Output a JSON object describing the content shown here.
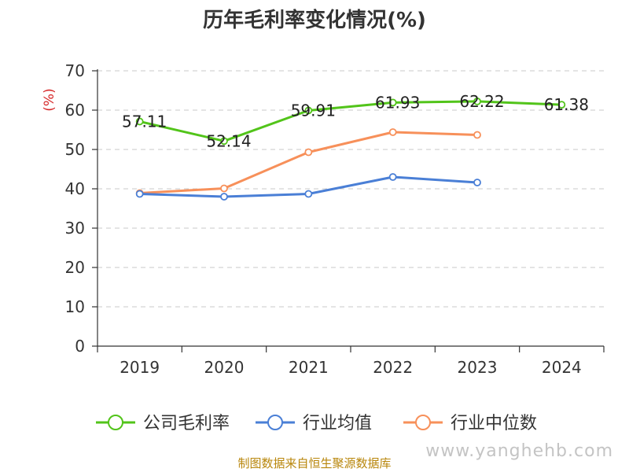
{
  "chart_data": {
    "type": "line",
    "title": "历年毛利率变化情况(%)",
    "ylabel": "(%)",
    "xlabel": "",
    "categories": [
      "2019",
      "2020",
      "2021",
      "2022",
      "2023",
      "2024"
    ],
    "ylim": [
      0,
      70
    ],
    "yticks": [
      0,
      10,
      20,
      30,
      40,
      50,
      60,
      70
    ],
    "grid": true,
    "legend_position": "bottom",
    "series": [
      {
        "name": "公司毛利率",
        "color": "#52c41a",
        "values": [
          57.11,
          52.14,
          59.91,
          61.93,
          62.22,
          61.38
        ],
        "labels": [
          "57.11",
          "52.14",
          "59.91",
          "61.93",
          "62.22",
          "61.38"
        ]
      },
      {
        "name": "行业均值",
        "color": "#4a7fd6",
        "values": [
          38.7,
          38.0,
          38.7,
          43.0,
          41.6,
          null
        ]
      },
      {
        "name": "行业中位数",
        "color": "#f7905a",
        "values": [
          38.9,
          40.1,
          49.3,
          54.4,
          53.7,
          null
        ]
      }
    ]
  },
  "footer": {
    "source": "制图数据来自恒生聚源数据库",
    "watermark": "www.yanghehb.com"
  }
}
